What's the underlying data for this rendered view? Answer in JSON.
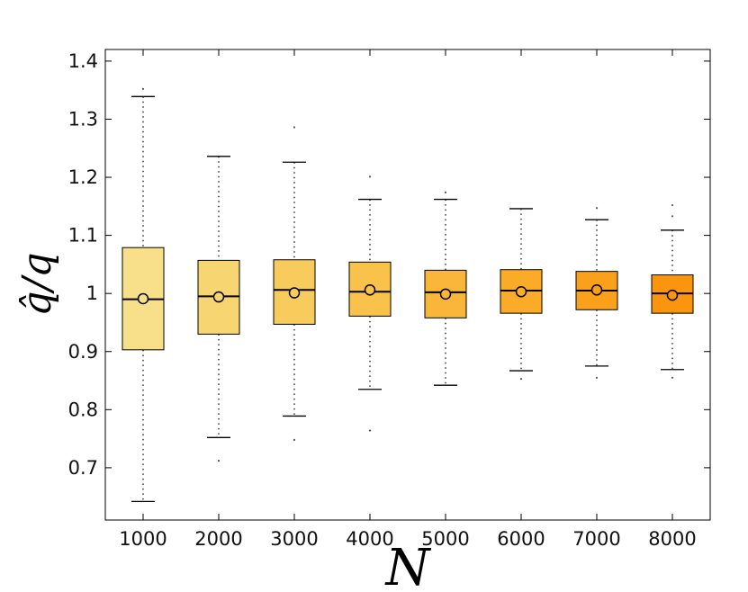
{
  "chart_data": {
    "type": "box",
    "title": "",
    "xlabel": "N",
    "ylabel": "q̂/q",
    "ylabel_parts": {
      "hat": "q̂",
      "slash": "/",
      "denom": "q"
    },
    "categories": [
      "1000",
      "2000",
      "3000",
      "4000",
      "5000",
      "6000",
      "7000",
      "8000"
    ],
    "yticks": [
      "0.7",
      "0.8",
      "0.9",
      "1",
      "1.1",
      "1.2",
      "1.3",
      "1.4"
    ],
    "ylim": [
      0.61,
      1.42
    ],
    "grid": false,
    "boxes": [
      {
        "category": "1000",
        "whisker_low": 0.642,
        "q1": 0.903,
        "median": 0.99,
        "q3": 1.079,
        "whisker_high": 1.339,
        "mean": 0.991,
        "outliers": [
          1.352
        ],
        "color": "#F8E08A"
      },
      {
        "category": "2000",
        "whisker_low": 0.752,
        "q1": 0.93,
        "median": 0.995,
        "q3": 1.057,
        "whisker_high": 1.236,
        "mean": 0.994,
        "outliers": [
          0.712
        ],
        "color": "#F7D672"
      },
      {
        "category": "3000",
        "whisker_low": 0.789,
        "q1": 0.947,
        "median": 1.006,
        "q3": 1.058,
        "whisker_high": 1.226,
        "mean": 1.001,
        "outliers": [
          0.748,
          1.286
        ],
        "color": "#F8CC5C"
      },
      {
        "category": "4000",
        "whisker_low": 0.835,
        "q1": 0.961,
        "median": 1.003,
        "q3": 1.054,
        "whisker_high": 1.162,
        "mean": 1.006,
        "outliers": [
          0.764,
          1.201
        ],
        "color": "#F9C24A"
      },
      {
        "category": "5000",
        "whisker_low": 0.842,
        "q1": 0.958,
        "median": 1.002,
        "q3": 1.04,
        "whisker_high": 1.162,
        "mean": 0.999,
        "outliers": [
          1.174
        ],
        "color": "#F9B638"
      },
      {
        "category": "6000",
        "whisker_low": 0.867,
        "q1": 0.966,
        "median": 1.005,
        "q3": 1.041,
        "whisker_high": 1.146,
        "mean": 1.003,
        "outliers": [
          0.853
        ],
        "color": "#FAAB28"
      },
      {
        "category": "7000",
        "whisker_low": 0.875,
        "q1": 0.972,
        "median": 1.005,
        "q3": 1.038,
        "whisker_high": 1.127,
        "mean": 1.006,
        "outliers": [
          0.855,
          1.147
        ],
        "color": "#FBA01A"
      },
      {
        "category": "8000",
        "whisker_low": 0.869,
        "q1": 0.966,
        "median": 1.0,
        "q3": 1.032,
        "whisker_high": 1.109,
        "mean": 0.997,
        "outliers": [
          0.855,
          1.133,
          1.152
        ],
        "color": "#FB950E"
      }
    ]
  }
}
